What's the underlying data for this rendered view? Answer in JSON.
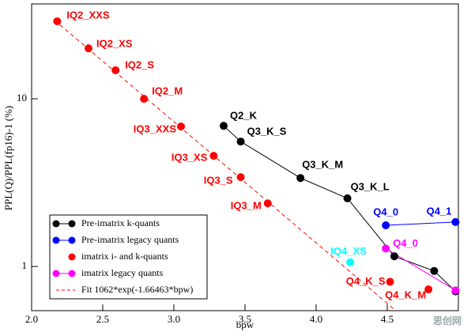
{
  "chart_data": {
    "type": "scatter",
    "x_label": "bpw",
    "y_label": "PPL(Q)/PPL(fp16)-1 (%)",
    "xlim": [
      2.0,
      5.0
    ],
    "xticks": [
      {
        "value": 2.0,
        "label": "2.0"
      },
      {
        "value": 2.5,
        "label": "2.5"
      },
      {
        "value": 3.0,
        "label": "3.0"
      },
      {
        "value": 3.5,
        "label": "3.5"
      },
      {
        "value": 4.0,
        "label": "4.0"
      },
      {
        "value": 4.5,
        "label": "4.5"
      }
    ],
    "ylim": [
      0.545,
      36.8
    ],
    "yticks": [
      1,
      10
    ],
    "log_y": true,
    "legend": "lower left",
    "watermark": "思创网",
    "series": [
      {
        "name": "Pre-imatrix k-quants",
        "color": "#000000",
        "line": true,
        "marker": true,
        "x": [
          3.35,
          3.47,
          3.89,
          4.22,
          4.55,
          4.83,
          4.98
        ],
        "values": [
          6.9,
          5.56,
          3.37,
          2.55,
          1.15,
          0.94,
          0.71
        ],
        "labels": [
          "Q2_K",
          "Q3_K_S",
          "Q3_K_M",
          "Q3_K_L",
          null,
          null,
          null
        ]
      },
      {
        "name": "Pre-imatrix legacy quants",
        "color": "#0000ff",
        "line": true,
        "marker": true,
        "x": [
          4.49,
          4.98
        ],
        "values": [
          1.76,
          1.84
        ],
        "labels": [
          "Q4_0",
          "Q4_1"
        ]
      },
      {
        "name": "imatrix i- and k-quants",
        "color": "#ff0000",
        "line": false,
        "marker": true,
        "x": [
          2.18,
          2.4,
          2.59,
          2.79,
          3.05,
          3.28,
          3.47,
          3.66,
          4.24,
          4.52,
          4.79
        ],
        "values": [
          29,
          20,
          14.8,
          10,
          6.84,
          4.57,
          3.41,
          2.38,
          1.06,
          0.81,
          0.73
        ],
        "point_colors": [
          "#ff0000",
          "#ff0000",
          "#ff0000",
          "#ff0000",
          "#ff0000",
          "#ff0000",
          "#ff0000",
          "#ff0000",
          "#00ffff",
          "#ff0000",
          "#ff0000"
        ],
        "labels": [
          "IQ2_XXS",
          "IQ2_XS",
          "IQ2_S",
          "IQ2_M",
          "IQ3_XXS",
          "IQ3_XS",
          "IQ3_S",
          "IQ3_M",
          "IQ4_XS",
          "Q4_K_S",
          "Q4_K_M"
        ]
      },
      {
        "name": "imatrix legacy quants",
        "color": "#ff00ff",
        "line": true,
        "marker": true,
        "x": [
          4.49,
          4.98
        ],
        "values": [
          1.28,
          0.72
        ],
        "labels": [
          "Q4_0",
          null
        ]
      },
      {
        "name": "Fit 1062*exp(-1.66463*bpw)",
        "color": "#ff0000",
        "line": true,
        "dashed": true,
        "marker": false,
        "x": [
          2.16,
          4.56
        ],
        "values": [
          29.5,
          0.545
        ]
      }
    ]
  }
}
